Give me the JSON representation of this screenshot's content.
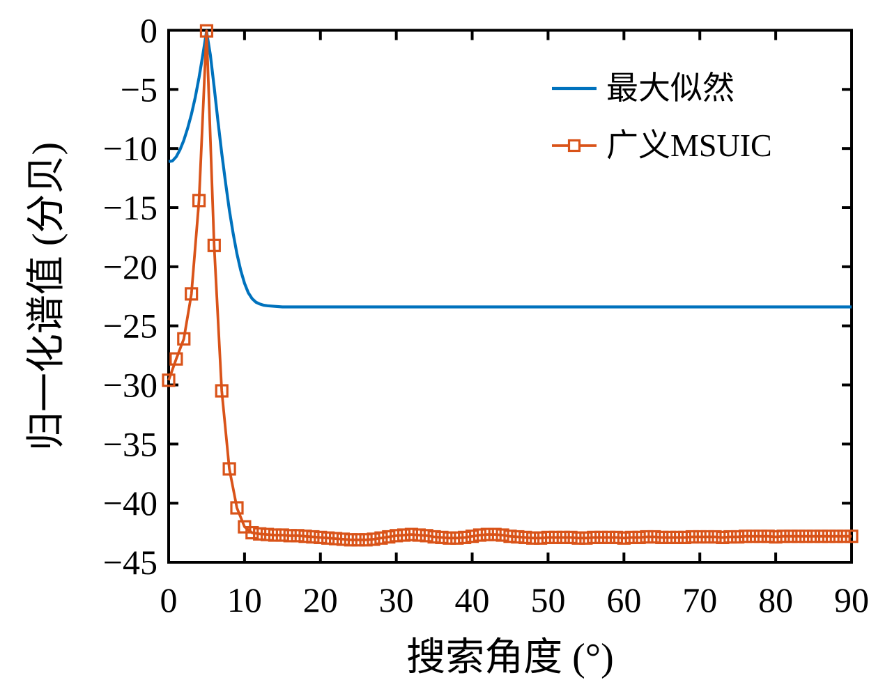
{
  "figure": {
    "background": "#ffffff"
  },
  "chart_data": {
    "type": "line",
    "title": "",
    "xlabel": "搜索角度 (°)",
    "ylabel": "归一化谱值 (分贝)",
    "xlim": [
      0,
      90
    ],
    "ylim": [
      -45,
      0
    ],
    "grid": false,
    "box": true,
    "tick_direction": "in",
    "ticks_mirrored": true,
    "legend_position": "top-right-inside",
    "x_tick_values": [
      0,
      10,
      20,
      30,
      40,
      50,
      60,
      70,
      80,
      90
    ],
    "x_tick_labels": [
      "0",
      "10",
      "20",
      "30",
      "40",
      "50",
      "60",
      "70",
      "80",
      "90"
    ],
    "y_tick_values": [
      0,
      -5,
      -10,
      -15,
      -20,
      -25,
      -30,
      -35,
      -40,
      -45
    ],
    "y_tick_labels": [
      "0",
      "−5",
      "−10",
      "−15",
      "−20",
      "−25",
      "−30",
      "−35",
      "−40",
      "−45"
    ],
    "series": [
      {
        "name": "最大似然",
        "color": "#0072BD",
        "marker": "none",
        "line_width": 4.2,
        "x": [
          0,
          0.5,
          1,
          1.5,
          2,
          2.5,
          3,
          3.5,
          4,
          4.5,
          5,
          5.5,
          6,
          6.5,
          7,
          7.5,
          8,
          8.5,
          9,
          9.5,
          10,
          10.5,
          11,
          11.5,
          12,
          12.5,
          13,
          14,
          15,
          16,
          18,
          20,
          25,
          30,
          35,
          40,
          45,
          50,
          55,
          60,
          65,
          70,
          75,
          80,
          85,
          90
        ],
        "y": [
          -11.1,
          -11.05,
          -10.7,
          -10.1,
          -9.3,
          -8.3,
          -7.1,
          -5.7,
          -4.0,
          -2.1,
          -0.1,
          -2.1,
          -4.8,
          -7.7,
          -10.4,
          -12.9,
          -15.2,
          -17.2,
          -18.9,
          -20.3,
          -21.4,
          -22.2,
          -22.7,
          -23.0,
          -23.15,
          -23.25,
          -23.3,
          -23.35,
          -23.4,
          -23.4,
          -23.4,
          -23.4,
          -23.4,
          -23.4,
          -23.4,
          -23.4,
          -23.4,
          -23.4,
          -23.4,
          -23.4,
          -23.4,
          -23.4,
          -23.4,
          -23.4,
          -23.4,
          -23.4
        ]
      },
      {
        "name": "广义MSUIC",
        "color": "#D95319",
        "marker": "square",
        "marker_size": 16,
        "line_width": 3.8,
        "x": [
          0,
          1,
          2,
          3,
          4,
          5,
          6,
          7,
          8,
          9,
          10,
          11,
          12,
          13,
          14,
          15,
          16,
          17,
          18,
          19,
          20,
          21,
          22,
          23,
          24,
          25,
          26,
          27,
          28,
          29,
          30,
          31,
          32,
          33,
          34,
          35,
          36,
          37,
          38,
          39,
          40,
          41,
          42,
          43,
          44,
          45,
          46,
          47,
          48,
          49,
          50,
          51,
          52,
          53,
          54,
          55,
          56,
          57,
          58,
          59,
          60,
          61,
          62,
          63,
          64,
          65,
          66,
          67,
          68,
          69,
          70,
          71,
          72,
          73,
          74,
          75,
          76,
          77,
          78,
          79,
          80,
          81,
          82,
          83,
          84,
          85,
          86,
          87,
          88,
          89,
          90
        ],
        "y": [
          -29.6,
          -27.8,
          -26.1,
          -22.3,
          -14.4,
          -0.05,
          -18.2,
          -30.5,
          -37.1,
          -40.4,
          -42.0,
          -42.5,
          -42.6,
          -42.65,
          -42.7,
          -42.7,
          -42.75,
          -42.75,
          -42.8,
          -42.85,
          -42.9,
          -42.95,
          -43.0,
          -43.05,
          -43.1,
          -43.1,
          -43.1,
          -43.05,
          -42.95,
          -42.85,
          -42.75,
          -42.7,
          -42.65,
          -42.7,
          -42.75,
          -42.85,
          -42.9,
          -42.95,
          -42.95,
          -42.9,
          -42.8,
          -42.7,
          -42.65,
          -42.65,
          -42.7,
          -42.8,
          -42.85,
          -42.9,
          -42.95,
          -42.95,
          -42.9,
          -42.9,
          -42.9,
          -42.9,
          -42.95,
          -42.95,
          -42.9,
          -42.9,
          -42.9,
          -42.9,
          -42.95,
          -42.9,
          -42.9,
          -42.85,
          -42.85,
          -42.9,
          -42.9,
          -42.9,
          -42.9,
          -42.85,
          -42.85,
          -42.85,
          -42.85,
          -42.9,
          -42.85,
          -42.85,
          -42.8,
          -42.8,
          -42.8,
          -42.8,
          -42.85,
          -42.8,
          -42.8,
          -42.8,
          -42.8,
          -42.8,
          -42.8,
          -42.8,
          -42.8,
          -42.8,
          -42.8
        ]
      }
    ]
  }
}
